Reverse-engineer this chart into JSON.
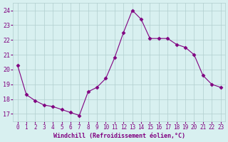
{
  "x": [
    0,
    1,
    2,
    3,
    4,
    5,
    6,
    7,
    8,
    9,
    10,
    11,
    12,
    13,
    14,
    15,
    16,
    17,
    18,
    19,
    20,
    21,
    22,
    23
  ],
  "y": [
    20.3,
    18.3,
    17.9,
    17.6,
    17.5,
    17.3,
    17.1,
    16.9,
    18.5,
    18.8,
    19.4,
    20.8,
    22.5,
    24.0,
    23.4,
    22.1,
    22.1,
    22.1,
    21.7,
    21.5,
    21.0,
    19.6,
    19.0,
    18.8
  ],
  "line_color": "#800080",
  "marker": "D",
  "marker_size": 2.5,
  "bg_color": "#d8f0f0",
  "grid_color": "#b0cece",
  "xlabel": "Windchill (Refroidissement éolien,°C)",
  "xlabel_color": "#800080",
  "tick_color": "#800080",
  "yticks": [
    17,
    18,
    19,
    20,
    21,
    22,
    23,
    24
  ],
  "xticks": [
    0,
    1,
    2,
    3,
    4,
    5,
    6,
    7,
    8,
    9,
    10,
    11,
    12,
    13,
    14,
    15,
    16,
    17,
    18,
    19,
    20,
    21,
    22,
    23
  ],
  "ylim": [
    16.5,
    24.5
  ],
  "xlim": [
    -0.5,
    23.5
  ]
}
